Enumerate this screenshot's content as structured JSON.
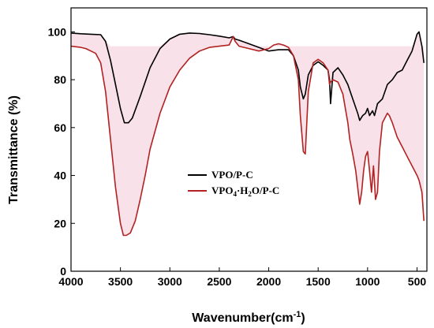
{
  "chart_data": {
    "type": "line",
    "xlabel": "Wavenumber",
    "xlabel_unit_prefix": "(cm",
    "xlabel_unit_sup": "-1",
    "xlabel_unit_suffix": ")",
    "ylabel": "Transmittance (%)",
    "xlim": [
      4000,
      400
    ],
    "ylim": [
      0,
      110
    ],
    "x_ticks": [
      4000,
      3500,
      3000,
      2500,
      2000,
      1500,
      1000,
      500
    ],
    "y_ticks": [
      0,
      20,
      40,
      60,
      80,
      100
    ],
    "grid": false,
    "legend_position": "center",
    "legend": {
      "entry1": "VPO/P-C",
      "entry2_parts": {
        "a": "VPO",
        "b": "4",
        "c": "·H",
        "d": "2",
        "e": "O/P-C"
      }
    },
    "colors": {
      "series1": "#000000",
      "series2": "#b22222",
      "fill": "#f3c9d6"
    },
    "series": [
      {
        "x": [
          4000,
          3900,
          3800,
          3700,
          3650,
          3600,
          3550,
          3500,
          3460,
          3420,
          3380,
          3300,
          3200,
          3100,
          3000,
          2900,
          2800,
          2700,
          2600,
          2500,
          2400,
          2360,
          2340,
          2300,
          2200,
          2100,
          2000,
          1900,
          1800,
          1750,
          1700,
          1680,
          1650,
          1630,
          1600,
          1550,
          1500,
          1450,
          1400,
          1385,
          1375,
          1350,
          1300,
          1250,
          1200,
          1150,
          1100,
          1080,
          1050,
          1020,
          1000,
          980,
          950,
          930,
          900,
          850,
          800,
          750,
          700,
          650,
          600,
          550,
          500,
          480,
          450,
          430
        ],
        "values": [
          99.5,
          99.2,
          99,
          98.8,
          96,
          88,
          78,
          68,
          62,
          62,
          64,
          73,
          85,
          93,
          97,
          99,
          99.5,
          99.3,
          98.8,
          98.2,
          97.5,
          98,
          97,
          96.5,
          95,
          93.5,
          92,
          92.5,
          92.5,
          90,
          84,
          77,
          72,
          74,
          82,
          86,
          87.5,
          86,
          84,
          80,
          70,
          83,
          85,
          82,
          78,
          72,
          66,
          63,
          65,
          66,
          68,
          65,
          67,
          65,
          70,
          72,
          78,
          80,
          83,
          84,
          88,
          92,
          99,
          100,
          94,
          87
        ]
      },
      {
        "x": [
          4000,
          3900,
          3850,
          3800,
          3750,
          3700,
          3650,
          3600,
          3550,
          3500,
          3470,
          3440,
          3400,
          3350,
          3300,
          3250,
          3200,
          3100,
          3000,
          2900,
          2800,
          2700,
          2600,
          2500,
          2400,
          2360,
          2340,
          2300,
          2200,
          2100,
          2000,
          1950,
          1900,
          1850,
          1800,
          1750,
          1700,
          1680,
          1650,
          1630,
          1600,
          1550,
          1500,
          1450,
          1400,
          1385,
          1375,
          1350,
          1300,
          1250,
          1200,
          1180,
          1150,
          1120,
          1100,
          1080,
          1060,
          1040,
          1020,
          1000,
          980,
          960,
          940,
          920,
          900,
          880,
          850,
          800,
          780,
          750,
          700,
          650,
          600,
          550,
          500,
          480,
          450,
          430
        ],
        "values": [
          94,
          93.5,
          93,
          92,
          91,
          87,
          75,
          55,
          35,
          20,
          15,
          15,
          16,
          21,
          30,
          40,
          51,
          66,
          77,
          84,
          89,
          92,
          93.5,
          94,
          94.5,
          98,
          96,
          94,
          93,
          92,
          93,
          94.5,
          95,
          94.5,
          93.5,
          90,
          80,
          65,
          50,
          49,
          75,
          87,
          88.5,
          87,
          84,
          78,
          79,
          80,
          79,
          74,
          62,
          55,
          49,
          42,
          35,
          28,
          33,
          42,
          48,
          50,
          42,
          33,
          44,
          30,
          33,
          50,
          62,
          66,
          65,
          62,
          56,
          52,
          48,
          44,
          40,
          38,
          33,
          21
        ]
      }
    ]
  }
}
